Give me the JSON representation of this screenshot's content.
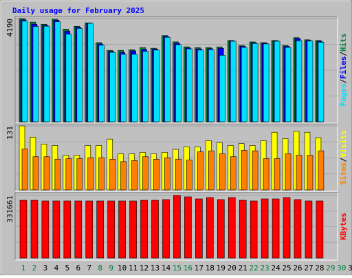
{
  "title": "Daily usage for February 2025",
  "chart_data": [
    {
      "type": "bar",
      "ylim": [
        0,
        4190
      ],
      "yticks": [
        4190
      ],
      "legend_separator": "/",
      "series": [
        {
          "name": "Pages",
          "color": "#00e0ff",
          "values": [
            4090,
            3870,
            3880,
            4060,
            3560,
            3790,
            4000,
            3110,
            2820,
            2740,
            2740,
            2860,
            2910,
            3430,
            3130,
            2960,
            2910,
            2930,
            2700,
            3270,
            3020,
            3180,
            3160,
            3270,
            3020,
            3290,
            3280,
            3230,
            null,
            null,
            null
          ]
        },
        {
          "name": "Files",
          "color": "#0000ff",
          "values": [
            4140,
            3960,
            3920,
            4120,
            3680,
            3840,
            4010,
            3160,
            2860,
            2810,
            2880,
            2940,
            2950,
            3470,
            3190,
            3000,
            2960,
            2970,
            2980,
            3290,
            3060,
            3210,
            3190,
            3290,
            3060,
            3380,
            3300,
            3270,
            null,
            null,
            null
          ]
        },
        {
          "name": "Hits",
          "color": "#008040",
          "values": [
            4190,
            4047,
            3960,
            4162,
            3760,
            3875,
            4018,
            3214,
            2899,
            2899,
            2927,
            3014,
            2985,
            3501,
            3243,
            3042,
            3014,
            3014,
            3042,
            3300,
            3100,
            3243,
            3214,
            3300,
            3100,
            3415,
            3329,
            3300,
            null,
            null,
            null
          ]
        }
      ]
    },
    {
      "type": "bar",
      "ylim": [
        0,
        131
      ],
      "yticks": [
        131
      ],
      "legend_separator": "/",
      "series": [
        {
          "name": "Sites",
          "color": "#ff8000",
          "values": [
            84,
            68,
            68,
            63,
            64,
            64,
            66,
            66,
            63,
            58,
            60,
            68,
            63,
            66,
            63,
            61,
            78,
            80,
            74,
            68,
            81,
            80,
            64,
            64,
            74,
            71,
            71,
            80,
            null,
            null,
            null
          ]
        },
        {
          "name": "Visits",
          "color": "#ffff00",
          "values": [
            131,
            108,
            94,
            91,
            71,
            71,
            91,
            91,
            104,
            74,
            74,
            77,
            74,
            77,
            83,
            88,
            88,
            101,
            97,
            91,
            95,
            91,
            101,
            118,
            105,
            120,
            118,
            107,
            null,
            null,
            null
          ]
        }
      ]
    },
    {
      "type": "bar",
      "ylim": [
        0,
        331661
      ],
      "yticks": [
        331661
      ],
      "categories": [
        "1",
        "2",
        "3",
        "4",
        "5",
        "6",
        "7",
        "8",
        "9",
        "10",
        "11",
        "12",
        "13",
        "14",
        "15",
        "16",
        "17",
        "18",
        "19",
        "20",
        "21",
        "22",
        "23",
        "24",
        "25",
        "26",
        "27",
        "28",
        "29",
        "30",
        "31"
      ],
      "category_colors": [
        "#008040",
        "#008040",
        "#000000",
        "#000000",
        "#000000",
        "#000000",
        "#000000",
        "#008040",
        "#008040",
        "#000000",
        "#000000",
        "#000000",
        "#000000",
        "#000000",
        "#008040",
        "#008040",
        "#000000",
        "#000000",
        "#000000",
        "#000000",
        "#000000",
        "#008040",
        "#008040",
        "#000000",
        "#000000",
        "#000000",
        "#000000",
        "#000000",
        "#008040",
        "#008040",
        "#000000"
      ],
      "series": [
        {
          "name": "KBytes",
          "color": "#ff0000",
          "values": [
            306146,
            306146,
            302502,
            302502,
            302502,
            302502,
            302502,
            302502,
            302502,
            302502,
            302502,
            306146,
            306146,
            309790,
            331661,
            324369,
            313436,
            320725,
            309790,
            320725,
            306146,
            302502,
            313436,
            313436,
            320725,
            309790,
            302502,
            302502,
            null,
            null,
            null
          ]
        }
      ]
    }
  ]
}
